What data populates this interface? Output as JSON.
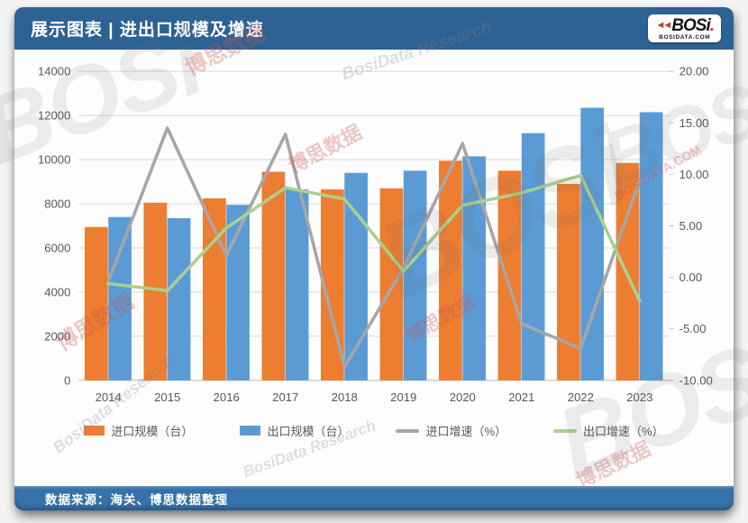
{
  "header": {
    "title": "展示图表 | 进出口规模及增速",
    "logo": {
      "brand": "BOSi",
      "domain": "BOSIDATA.COM"
    }
  },
  "footer": {
    "source": "数据来源：海关、博思数据整理"
  },
  "watermark": {
    "cn": "博思数据",
    "en": "BosiData Research",
    "brand": "BOSi",
    "site": "BOSIDATA.COM"
  },
  "chart_data": {
    "type": "bar",
    "subtype": "bar-line-combo",
    "title": "进出口规模及增速",
    "categories": [
      "2014",
      "2015",
      "2016",
      "2017",
      "2018",
      "2019",
      "2020",
      "2021",
      "2022",
      "2023"
    ],
    "series": [
      {
        "id": "import-scale",
        "name": "进口规模（台）",
        "kind": "bar",
        "axis": "left",
        "color": "#ED7D31",
        "values": [
          6950,
          8050,
          8250,
          9450,
          8650,
          8700,
          9950,
          9500,
          8900,
          9850
        ]
      },
      {
        "id": "export-scale",
        "name": "出口规模（台）",
        "kind": "bar",
        "axis": "left",
        "color": "#5B9BD5",
        "values": [
          7400,
          7350,
          7950,
          8650,
          9400,
          9500,
          10150,
          11200,
          12350,
          12150
        ]
      },
      {
        "id": "import-growth",
        "name": "进口增速（%）",
        "kind": "line",
        "axis": "right",
        "color": "#A6A6A6",
        "values": [
          -0.4,
          14.5,
          2.1,
          13.9,
          -8.7,
          0.9,
          13.0,
          -4.5,
          -6.9,
          9.4
        ]
      },
      {
        "id": "export-growth",
        "name": "出口增速（%）",
        "kind": "line",
        "axis": "right",
        "color": "#A9D18E",
        "values": [
          -0.6,
          -1.3,
          4.8,
          8.7,
          7.6,
          0.6,
          7.0,
          8.2,
          9.9,
          -2.3
        ]
      }
    ],
    "left_axis": {
      "min": 0,
      "max": 14000,
      "step": 2000,
      "labels": [
        "0",
        "2000",
        "4000",
        "6000",
        "8000",
        "10000",
        "12000",
        "14000"
      ]
    },
    "right_axis": {
      "min": -10,
      "max": 20,
      "step": 5,
      "labels": [
        "-10.00",
        "-5.00",
        "0.00",
        "5.00",
        "10.00",
        "15.00",
        "20.00"
      ]
    },
    "grid": true,
    "legend_position": "bottom",
    "colors": {
      "grid": "#D9D9D9",
      "axis_line": "#BFBFBF",
      "tick_text": "#595959"
    }
  }
}
